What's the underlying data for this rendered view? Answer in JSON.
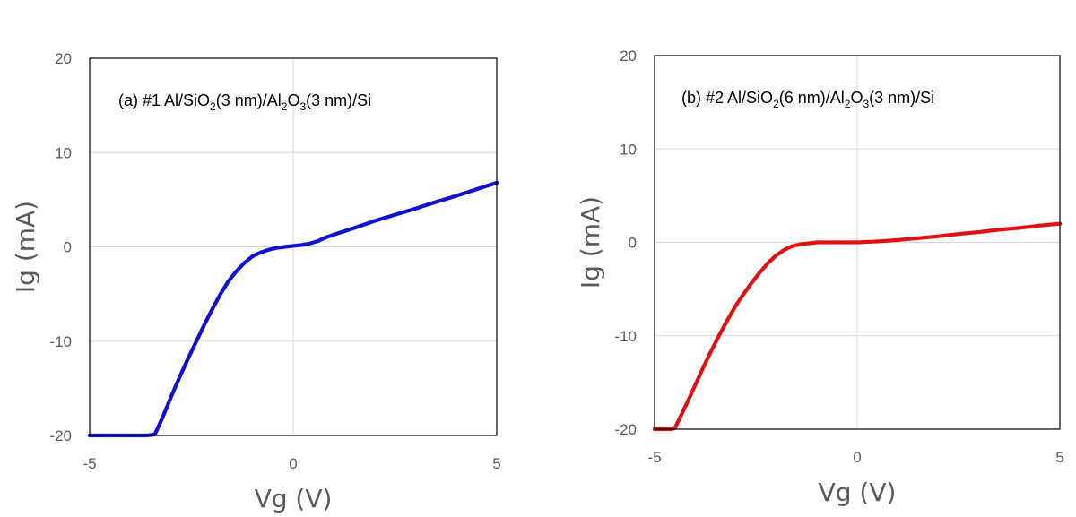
{
  "chart_data": [
    {
      "type": "scatter",
      "annotation": {
        "prefix": "(a) #1 Al/SiO",
        "sub1": "2",
        "mid1": "(3 nm)/Al",
        "sub2": "2",
        "mid2": "O",
        "sub3": "3",
        "suffix": "(3 nm)/Si"
      },
      "xlabel": "Vg (V)",
      "ylabel": "Ig (mA)",
      "xlim": [
        -5,
        5
      ],
      "ylim": [
        -20,
        20
      ],
      "xticks": [
        "-5",
        "0",
        "5"
      ],
      "yticks": [
        "20",
        "10",
        "0",
        "-10",
        "-20"
      ],
      "grid": true,
      "legend": "none",
      "color": "#1010d0",
      "series": [
        {
          "x": [
            -5.0,
            -4.5,
            -4.0,
            -3.6,
            -3.4,
            -3.2,
            -3.0,
            -2.8,
            -2.6,
            -2.4,
            -2.2,
            -2.0,
            -1.8,
            -1.6,
            -1.4,
            -1.2,
            -1.0,
            -0.8,
            -0.6,
            -0.4,
            -0.2,
            0.0,
            0.2,
            0.4,
            0.6,
            0.8,
            1.0,
            1.5,
            2.0,
            2.5,
            3.0,
            3.5,
            4.0,
            4.5,
            5.0
          ],
          "y": [
            -20.0,
            -20.0,
            -20.0,
            -20.0,
            -19.9,
            -18.0,
            -15.9,
            -13.9,
            -12.0,
            -10.2,
            -8.4,
            -6.7,
            -5.1,
            -3.7,
            -2.6,
            -1.7,
            -1.0,
            -0.6,
            -0.3,
            -0.1,
            0.0,
            0.1,
            0.2,
            0.35,
            0.6,
            1.0,
            1.3,
            2.0,
            2.75,
            3.4,
            4.05,
            4.75,
            5.4,
            6.1,
            6.8
          ]
        }
      ]
    },
    {
      "type": "scatter",
      "annotation": {
        "prefix": "(b) #2 Al/SiO",
        "sub1": "2",
        "mid1": "(6 nm)/Al",
        "sub2": "2",
        "mid2": "O",
        "sub3": "3",
        "suffix": "(3 nm)/Si"
      },
      "xlabel": "Vg (V)",
      "ylabel": "Ig (mA)",
      "xlim": [
        -5,
        5
      ],
      "ylim": [
        -20,
        20
      ],
      "xticks": [
        "-5",
        "0",
        "5"
      ],
      "yticks": [
        "20",
        "10",
        "0",
        "-10",
        "-20"
      ],
      "grid": true,
      "legend": "none",
      "color": "#e01010",
      "series": [
        {
          "x": [
            -5.0,
            -4.8,
            -4.6,
            -4.5,
            -4.4,
            -4.2,
            -4.0,
            -3.8,
            -3.6,
            -3.4,
            -3.2,
            -3.0,
            -2.8,
            -2.6,
            -2.4,
            -2.2,
            -2.0,
            -1.8,
            -1.6,
            -1.4,
            -1.2,
            -1.0,
            -0.8,
            -0.5,
            0.0,
            0.5,
            1.0,
            1.5,
            2.0,
            2.5,
            3.0,
            3.5,
            4.0,
            4.5,
            5.0
          ],
          "y": [
            -20.0,
            -20.0,
            -20.0,
            -19.9,
            -19.0,
            -17.2,
            -15.3,
            -13.4,
            -11.6,
            -9.9,
            -8.3,
            -6.8,
            -5.5,
            -4.3,
            -3.2,
            -2.2,
            -1.4,
            -0.8,
            -0.4,
            -0.2,
            -0.1,
            0.0,
            0.0,
            0.0,
            0.0,
            0.1,
            0.25,
            0.45,
            0.65,
            0.9,
            1.1,
            1.35,
            1.55,
            1.8,
            2.0
          ]
        }
      ]
    }
  ]
}
